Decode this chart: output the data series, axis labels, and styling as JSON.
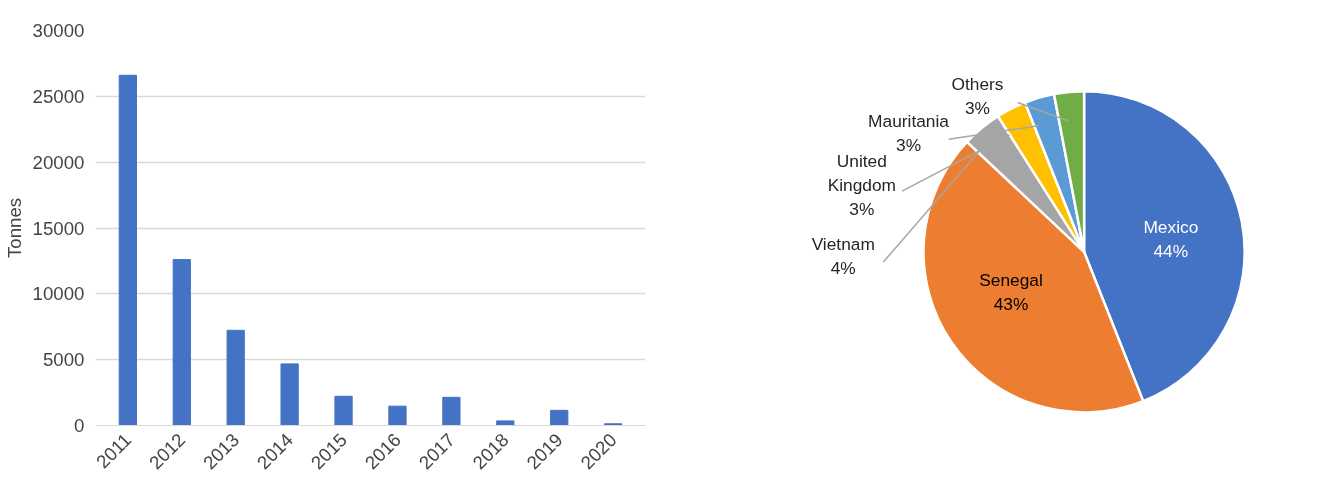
{
  "chart_data": [
    {
      "type": "bar",
      "ylabel": "Tonnes",
      "categories": [
        "2011",
        "2012",
        "2013",
        "2014",
        "2015",
        "2016",
        "2017",
        "2018",
        "2019",
        "2020"
      ],
      "values": [
        26600,
        12600,
        7230,
        4680,
        2220,
        1470,
        2140,
        350,
        1150,
        130
      ],
      "color": "#4472c4",
      "ylim": [
        0,
        30000
      ],
      "yticks": [
        0,
        5000,
        10000,
        15000,
        20000,
        25000,
        30000
      ],
      "grid": "y"
    },
    {
      "type": "pie",
      "categories": [
        "Mexico",
        "Senegal",
        "Vietnam",
        "United Kingdom",
        "Mauritania",
        "Others"
      ],
      "values": [
        44,
        43,
        4,
        3,
        3,
        3
      ],
      "value_labels": [
        "44%",
        "43%",
        "4%",
        "3%",
        "3%",
        "3%"
      ],
      "colors": [
        "#4472c4",
        "#ed7d31",
        "#a5a5a5",
        "#ffc000",
        "#5b9bd5",
        "#70ad47"
      ]
    }
  ]
}
